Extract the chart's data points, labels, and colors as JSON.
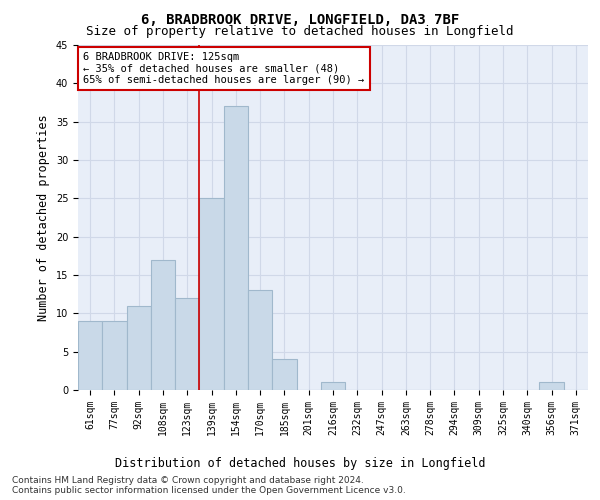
{
  "title": "6, BRADBROOK DRIVE, LONGFIELD, DA3 7BF",
  "subtitle": "Size of property relative to detached houses in Longfield",
  "xlabel": "Distribution of detached houses by size in Longfield",
  "ylabel": "Number of detached properties",
  "categories": [
    "61sqm",
    "77sqm",
    "92sqm",
    "108sqm",
    "123sqm",
    "139sqm",
    "154sqm",
    "170sqm",
    "185sqm",
    "201sqm",
    "216sqm",
    "232sqm",
    "247sqm",
    "263sqm",
    "278sqm",
    "294sqm",
    "309sqm",
    "325sqm",
    "340sqm",
    "356sqm",
    "371sqm"
  ],
  "values": [
    9,
    9,
    11,
    17,
    12,
    25,
    37,
    13,
    4,
    0,
    1,
    0,
    0,
    0,
    0,
    0,
    0,
    0,
    0,
    1,
    0
  ],
  "bar_color": "#c9d9e8",
  "bar_edge_color": "#a0b8cc",
  "bar_linewidth": 0.8,
  "property_line_x": 4.5,
  "annotation_text_line1": "6 BRADBROOK DRIVE: 125sqm",
  "annotation_text_line2": "← 35% of detached houses are smaller (48)",
  "annotation_text_line3": "65% of semi-detached houses are larger (90) →",
  "annotation_box_color": "#ffffff",
  "annotation_box_edge_color": "#cc0000",
  "vline_color": "#cc0000",
  "vline_linewidth": 1.2,
  "ylim": [
    0,
    45
  ],
  "yticks": [
    0,
    5,
    10,
    15,
    20,
    25,
    30,
    35,
    40,
    45
  ],
  "grid_color": "#d0d8e8",
  "bg_color": "#e8eef8",
  "footer1": "Contains HM Land Registry data © Crown copyright and database right 2024.",
  "footer2": "Contains public sector information licensed under the Open Government Licence v3.0.",
  "title_fontsize": 10,
  "subtitle_fontsize": 9,
  "axis_label_fontsize": 8.5,
  "tick_fontsize": 7,
  "annotation_fontsize": 7.5,
  "footer_fontsize": 6.5
}
